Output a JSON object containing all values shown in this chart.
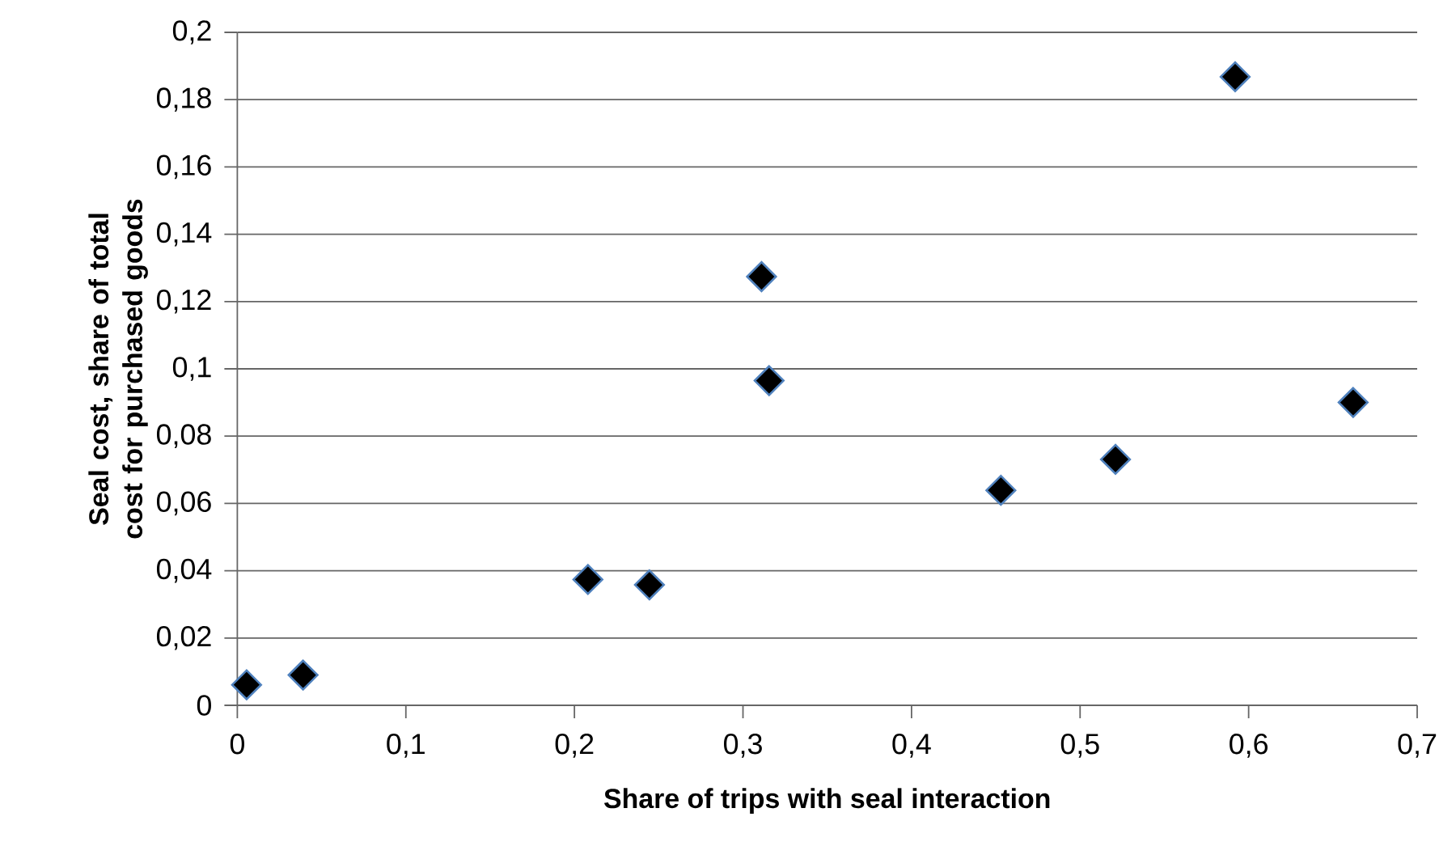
{
  "chart_data": {
    "type": "scatter",
    "xlabel": "Share of trips with seal interaction",
    "ylabel": "Seal cost, share of total cost for purchased goods",
    "x": [
      0.0055,
      0.039,
      0.208,
      0.2445,
      0.311,
      0.3155,
      0.453,
      0.521,
      0.592,
      0.662
    ],
    "series": [
      {
        "color": "#000000",
        "values": [
          0.0061,
          0.009,
          0.0374,
          0.0358,
          0.1274,
          0.0965,
          0.0639,
          0.0731,
          0.1868,
          0.09
        ]
      }
    ],
    "marker": "diamond",
    "grid": "y",
    "xlim": [
      0,
      0.7
    ],
    "ylim": [
      0,
      0.2
    ],
    "xticks": [
      0,
      {
        "value": 0.1,
        "label": "0,1"
      },
      {
        "value": 0.2,
        "label": "0,2"
      },
      {
        "value": 0.3,
        "label": "0,3"
      },
      {
        "value": 0.4,
        "label": "0,4"
      },
      {
        "value": 0.5,
        "label": "0,5"
      },
      {
        "value": 0.6,
        "label": "0,6"
      },
      {
        "value": 0.7,
        "label": "0,7"
      }
    ],
    "yticks": [
      0,
      {
        "value": 0.02,
        "label": "0,02"
      },
      {
        "value": 0.04,
        "label": "0,04"
      },
      {
        "value": 0.06,
        "label": "0,06"
      },
      {
        "value": 0.08,
        "label": "0,08"
      },
      {
        "value": 0.1,
        "label": "0,1"
      },
      {
        "value": 0.12,
        "label": "0,12"
      },
      {
        "value": 0.14,
        "label": "0,14"
      },
      {
        "value": 0.16,
        "label": "0,16"
      },
      {
        "value": 0.18,
        "label": "0,18"
      },
      {
        "value": 0.2,
        "label": "0,2"
      }
    ]
  }
}
